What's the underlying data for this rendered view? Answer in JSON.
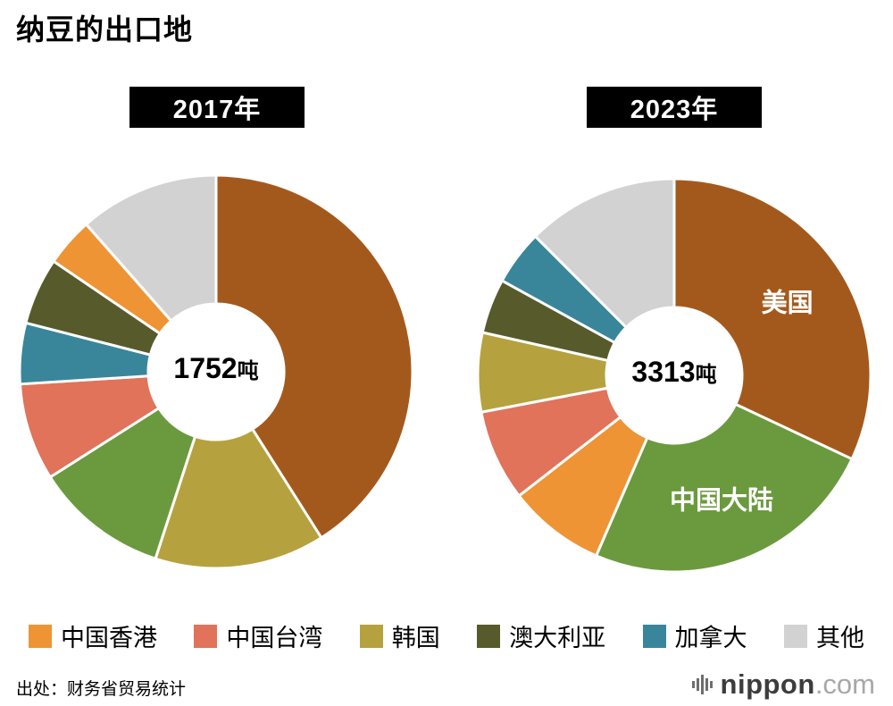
{
  "page": {
    "title": "纳豆的出口地",
    "source": "出处：财务省贸易统计",
    "logo": {
      "name": "nippon",
      "tld": ".com"
    }
  },
  "colors": {
    "usa_brown": "#A4591C",
    "mainland_green": "#6B9A3E",
    "hongkong_orange": "#EE9435",
    "taiwan_salmon": "#E0735A",
    "korea_khaki": "#B5A23E",
    "australia_olive": "#575B2B",
    "canada_teal": "#39869B",
    "others_gray": "#D2D2D2",
    "badge_bg": "#000000",
    "badge_text": "#ffffff"
  },
  "legend": [
    {
      "id": "hong-kong",
      "label": "中国香港",
      "color": "#EE9435"
    },
    {
      "id": "taiwan",
      "label": "中国台湾",
      "color": "#E0735A"
    },
    {
      "id": "south-korea",
      "label": "韩国",
      "color": "#B5A23E"
    },
    {
      "id": "australia",
      "label": "澳大利亚",
      "color": "#575B2B"
    },
    {
      "id": "canada",
      "label": "加拿大",
      "color": "#39869B"
    },
    {
      "id": "others",
      "label": "其他",
      "color": "#D2D2D2"
    }
  ],
  "chart_data": [
    {
      "type": "pie",
      "title": "2017年",
      "total": 1752,
      "unit": "吨",
      "center_number": "1752",
      "center_unit": "吨",
      "start_angle_deg": 0,
      "direction": "clockwise",
      "series": [
        {
          "id": "usa",
          "name": "美国",
          "value_pct": 41,
          "color": "#A4591C"
        },
        {
          "id": "south-korea",
          "name": "韩国",
          "value_pct": 14,
          "color": "#B5A23E"
        },
        {
          "id": "mainland-china",
          "name": "中国大陆",
          "value_pct": 11,
          "color": "#6B9A3E"
        },
        {
          "id": "taiwan",
          "name": "中国台湾",
          "value_pct": 8,
          "color": "#E0735A"
        },
        {
          "id": "canada",
          "name": "加拿大",
          "value_pct": 5,
          "color": "#39869B"
        },
        {
          "id": "australia",
          "name": "澳大利亚",
          "value_pct": 5.5,
          "color": "#575B2B"
        },
        {
          "id": "hong-kong",
          "name": "中国香港",
          "value_pct": 4,
          "color": "#EE9435"
        },
        {
          "id": "others",
          "name": "其他",
          "value_pct": 11.5,
          "color": "#D2D2D2"
        }
      ]
    },
    {
      "type": "pie",
      "title": "2023年",
      "total": 3313,
      "unit": "吨",
      "center_number": "3313",
      "center_unit": "吨",
      "start_angle_deg": 0,
      "direction": "clockwise",
      "series": [
        {
          "id": "usa",
          "name": "美国",
          "value_pct": 32,
          "color": "#A4591C",
          "slice_label": "美国"
        },
        {
          "id": "mainland-china",
          "name": "中国大陆",
          "value_pct": 24.5,
          "color": "#6B9A3E",
          "slice_label": "中国大陆"
        },
        {
          "id": "hong-kong",
          "name": "中国香港",
          "value_pct": 8,
          "color": "#EE9435"
        },
        {
          "id": "taiwan",
          "name": "中国台湾",
          "value_pct": 7.5,
          "color": "#E0735A"
        },
        {
          "id": "south-korea",
          "name": "韩国",
          "value_pct": 6.5,
          "color": "#B5A23E"
        },
        {
          "id": "australia",
          "name": "澳大利亚",
          "value_pct": 4.5,
          "color": "#575B2B"
        },
        {
          "id": "canada",
          "name": "加拿大",
          "value_pct": 4.5,
          "color": "#39869B"
        },
        {
          "id": "others",
          "name": "其他",
          "value_pct": 12.5,
          "color": "#D2D2D2"
        }
      ]
    }
  ]
}
